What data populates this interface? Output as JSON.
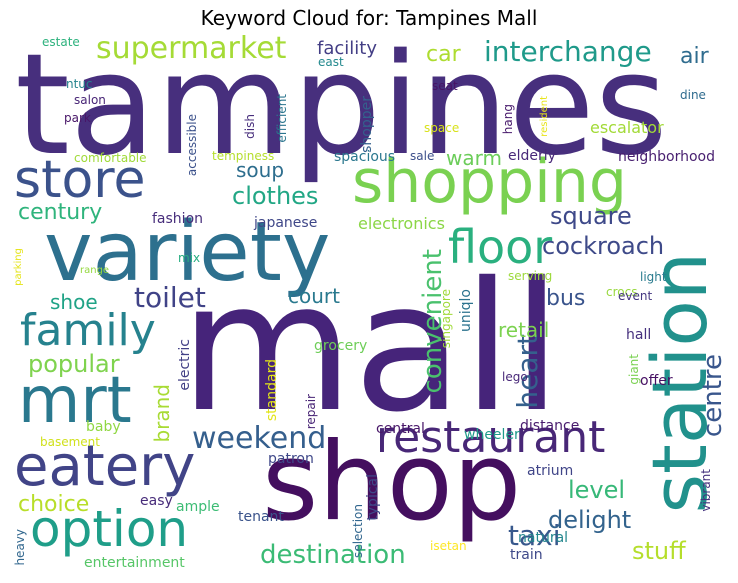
{
  "title": "Keyword Cloud for: Tampines Mall",
  "words": [
    {
      "text": "tampines",
      "color": "#472f7d"
    },
    {
      "text": "mall",
      "color": "#46247a"
    },
    {
      "text": "shop",
      "color": "#440f5f"
    },
    {
      "text": "shopping",
      "color": "#7ad151"
    },
    {
      "text": "variety",
      "color": "#2d708e"
    },
    {
      "text": "station",
      "color": "#21918c"
    },
    {
      "text": "store",
      "color": "#3b528b"
    },
    {
      "text": "mrt",
      "color": "#2a788e"
    },
    {
      "text": "eatery",
      "color": "#414487"
    },
    {
      "text": "restaurant",
      "color": "#482777"
    },
    {
      "text": "option",
      "color": "#1f9e89"
    },
    {
      "text": "family",
      "color": "#26828e"
    },
    {
      "text": "floor",
      "color": "#2ab07f"
    },
    {
      "text": "supermarket",
      "color": "#a5db36"
    },
    {
      "text": "interchange",
      "color": "#1f9a8a"
    },
    {
      "text": "weekend",
      "color": "#355f8d"
    },
    {
      "text": "destination",
      "color": "#3bbb75"
    },
    {
      "text": "cockroach",
      "color": "#3e4a89"
    },
    {
      "text": "toilet",
      "color": "#404387"
    },
    {
      "text": "convenient",
      "color": "#4ac16d"
    },
    {
      "text": "square",
      "color": "#3e4989"
    },
    {
      "text": "century",
      "color": "#2fb47c"
    },
    {
      "text": "clothes",
      "color": "#22a785"
    },
    {
      "text": "popular",
      "color": "#7fd34e"
    },
    {
      "text": "taxi",
      "color": "#38588c"
    },
    {
      "text": "heart",
      "color": "#35608d"
    },
    {
      "text": "centre",
      "color": "#39568c"
    },
    {
      "text": "delight",
      "color": "#33638d"
    },
    {
      "text": "stuff",
      "color": "#b5de2b"
    },
    {
      "text": "level",
      "color": "#37b878"
    },
    {
      "text": "choice",
      "color": "#b8de29"
    },
    {
      "text": "soup",
      "color": "#2e6e8e"
    },
    {
      "text": "bus",
      "color": "#3a548c"
    },
    {
      "text": "court",
      "color": "#29798e"
    },
    {
      "text": "shoe",
      "color": "#20a386"
    },
    {
      "text": "car",
      "color": "#addc30"
    },
    {
      "text": "air",
      "color": "#2f6c8e"
    },
    {
      "text": "retail",
      "color": "#7cd250"
    },
    {
      "text": "warm",
      "color": "#6ccd5a"
    },
    {
      "text": "brand",
      "color": "#a8db34"
    },
    {
      "text": "facility",
      "color": "#433e85"
    },
    {
      "text": "escalator",
      "color": "#a2da37"
    },
    {
      "text": "electronics",
      "color": "#8bd646"
    },
    {
      "text": "fashion",
      "color": "#472d7b"
    },
    {
      "text": "japanese",
      "color": "#3f4788"
    },
    {
      "text": "grocery",
      "color": "#6ece58"
    },
    {
      "text": "electric",
      "color": "#424086"
    },
    {
      "text": "standard",
      "color": "#e2e418"
    },
    {
      "text": "repair",
      "color": "#482475"
    },
    {
      "text": "singapore",
      "color": "#a0da39"
    },
    {
      "text": "uniqlo",
      "color": "#2c738e"
    },
    {
      "text": "crocs",
      "color": "#98d83e"
    },
    {
      "text": "light",
      "color": "#297b8e"
    },
    {
      "text": "event",
      "color": "#453781"
    },
    {
      "text": "serving",
      "color": "#9dd93b"
    },
    {
      "text": "hall",
      "color": "#46307e"
    },
    {
      "text": "offer",
      "color": "#471164"
    },
    {
      "text": "giant",
      "color": "#7ad151"
    },
    {
      "text": "lego",
      "color": "#482878"
    },
    {
      "text": "distance",
      "color": "#481b6d"
    },
    {
      "text": "central",
      "color": "#481769"
    },
    {
      "text": "wheeler",
      "color": "#1e9b8a"
    },
    {
      "text": "patron",
      "color": "#3f4889"
    },
    {
      "text": "selection",
      "color": "#31668e"
    },
    {
      "text": "typical",
      "color": "#3f4889"
    },
    {
      "text": "atrium",
      "color": "#404588"
    },
    {
      "text": "natural",
      "color": "#24878e"
    },
    {
      "text": "train",
      "color": "#3e4989"
    },
    {
      "text": "isetan",
      "color": "#fde725"
    },
    {
      "text": "vibrant",
      "color": "#46337f"
    },
    {
      "text": "easy",
      "color": "#472c7a"
    },
    {
      "text": "ample",
      "color": "#3cbc74"
    },
    {
      "text": "tenant",
      "color": "#3a538b"
    },
    {
      "text": "heavy",
      "color": "#31678e"
    },
    {
      "text": "entertainment",
      "color": "#56c667"
    },
    {
      "text": "basement",
      "color": "#d0e11c"
    },
    {
      "text": "baby",
      "color": "#90d743"
    },
    {
      "text": "mix",
      "color": "#26ad81"
    },
    {
      "text": "range",
      "color": "#95d840"
    },
    {
      "text": "parking",
      "color": "#e5e419"
    },
    {
      "text": "comfortable",
      "color": "#a0da39"
    },
    {
      "text": "tempiness",
      "color": "#b5de2b"
    },
    {
      "text": "spacious",
      "color": "#2a778e"
    },
    {
      "text": "sale",
      "color": "#3c4f8a"
    },
    {
      "text": "elderly",
      "color": "#482979"
    },
    {
      "text": "neighborhood",
      "color": "#481f70"
    },
    {
      "text": "space",
      "color": "#d8e219"
    },
    {
      "text": "resident",
      "color": "#e7e419"
    },
    {
      "text": "dine",
      "color": "#2f6b8e"
    },
    {
      "text": "hang",
      "color": "#481a6c"
    },
    {
      "text": "seat",
      "color": "#471365"
    },
    {
      "text": "shopper",
      "color": "#34608d"
    },
    {
      "text": "east",
      "color": "#23898e"
    },
    {
      "text": "accessible",
      "color": "#3b518b"
    },
    {
      "text": "dish",
      "color": "#472e7c"
    },
    {
      "text": "efficient",
      "color": "#2b758e"
    },
    {
      "text": "ntuc",
      "color": "#25848e"
    },
    {
      "text": "salon",
      "color": "#482576"
    },
    {
      "text": "park",
      "color": "#481668"
    },
    {
      "text": "estate",
      "color": "#2db27d"
    }
  ]
}
